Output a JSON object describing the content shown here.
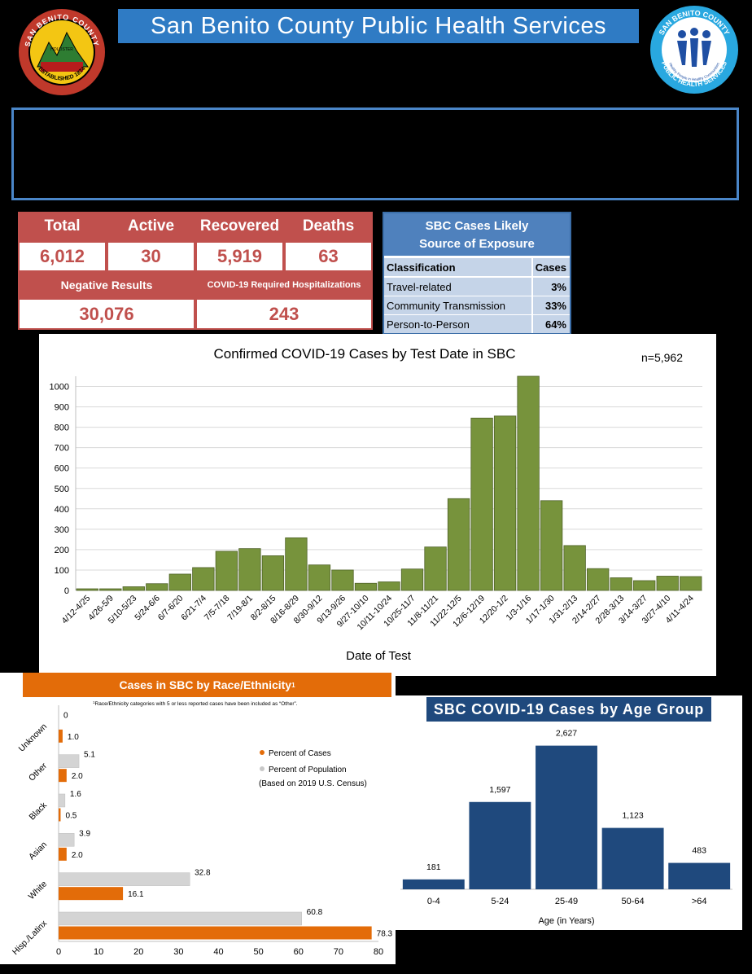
{
  "header": {
    "title": "San Benito County Public Health Services",
    "logo_left": {
      "ring_text_top": "SAN BENITO COUNTY",
      "ring_text_bottom": "ESTABLISHED 1874",
      "center_text": "HOLLISTER"
    },
    "logo_right": {
      "ring_text_top": "SAN BENITO COUNTY",
      "ring_text_bottom": "PUBLIC HEALTH SERVICES",
      "tagline": "Healthy People in Healthy Communities"
    }
  },
  "stats": {
    "total_label": "Total",
    "active_label": "Active",
    "recovered_label": "Recovered",
    "deaths_label": "Deaths",
    "total": "6,012",
    "active": "30",
    "recovered": "5,919",
    "deaths": "63",
    "negative_label": "Negative Results",
    "hosp_label": "COVID-19 Required Hospitalizations",
    "negative": "30,076",
    "hosp": "243"
  },
  "exposure": {
    "title_line1": "SBC Cases Likely",
    "title_line2": "Source of Exposure",
    "col1": "Classification",
    "col2": "Cases",
    "rows": [
      {
        "label": "Travel-related",
        "value": "3%"
      },
      {
        "label": "Community Transmission",
        "value": "33%"
      },
      {
        "label": "Person-to-Person",
        "value": "64%"
      }
    ]
  },
  "chart_data": [
    {
      "type": "bar",
      "title": "Confirmed COVID-19 Cases by Test Date in SBC",
      "annotation": "n=5,962",
      "xlabel": "Date of Test",
      "ylabel": "",
      "ylim": [
        0,
        1050
      ],
      "yticks": [
        0,
        100,
        200,
        300,
        400,
        500,
        600,
        700,
        800,
        900,
        1000
      ],
      "grid": true,
      "color": "#77933c",
      "categories": [
        "4/12-4/25",
        "4/26-5/9",
        "5/10-5/23",
        "5/24-6/6",
        "6/7-6/20",
        "6/21-7/4",
        "7/5-7/18",
        "7/19-8/1",
        "8/2-8/15",
        "8/16-8/29",
        "8/30-9/12",
        "9/13-9/26",
        "9/27-10/10",
        "10/11-10/24",
        "10/25-11/7",
        "11/8-11/21",
        "11/22-12/5",
        "12/6-12/19",
        "12/20-1/2",
        "1/3-1/16",
        "1/17-1/30",
        "1/31-2/13",
        "2/14-2/27",
        "2/28-3/13",
        "3/14-3/27",
        "3/27-4/10",
        "4/11-4/24"
      ],
      "values": [
        8,
        8,
        18,
        33,
        80,
        112,
        192,
        205,
        170,
        258,
        125,
        100,
        35,
        42,
        105,
        213,
        450,
        845,
        855,
        1050,
        440,
        220,
        107,
        62,
        48,
        70,
        68
      ]
    },
    {
      "type": "bar",
      "orientation": "horizontal",
      "title": "Cases in SBC by Race/Ethnicity",
      "title_mark": "1",
      "footnote": "Race/Ethnicity categories with 5 or less reported cases have been included as “Other”.",
      "footnote_mark": "1",
      "xlim": [
        0,
        80
      ],
      "xticks": [
        0,
        10,
        20,
        30,
        40,
        50,
        60,
        70,
        80
      ],
      "categories": [
        "Unknown",
        "Other",
        "Black",
        "Asian",
        "White",
        "Hisp./Latinx"
      ],
      "series": [
        {
          "name": "Percent of Cases",
          "color": "#e36c09",
          "values": [
            1.0,
            2.0,
            0.5,
            2.0,
            16.1,
            78.3
          ],
          "labels": [
            "1.0",
            "2.0",
            "0.5",
            "2.0",
            "16.1",
            "78.3"
          ]
        },
        {
          "name": "Percent of Population",
          "color": "#d4d4d4",
          "values": [
            0,
            5.1,
            1.6,
            3.9,
            32.8,
            60.8
          ],
          "labels": [
            "0",
            "5.1",
            "1.6",
            "3.9",
            "32.8",
            "60.8"
          ]
        }
      ],
      "legend_note": "(Based on 2019 U.S. Census)",
      "legend": "right"
    },
    {
      "type": "bar",
      "title": "SBC COVID-19 Cases by Age Group",
      "xlabel": "Age (in Years)",
      "color": "#1f497d",
      "ylim": [
        0,
        2800
      ],
      "categories": [
        "0-4",
        "5-24",
        "25-49",
        "50-64",
        ">64"
      ],
      "values": [
        181,
        1597,
        2627,
        1123,
        483
      ],
      "labels": [
        "181",
        "1,597",
        "2,627",
        "1,123",
        "483"
      ]
    }
  ]
}
